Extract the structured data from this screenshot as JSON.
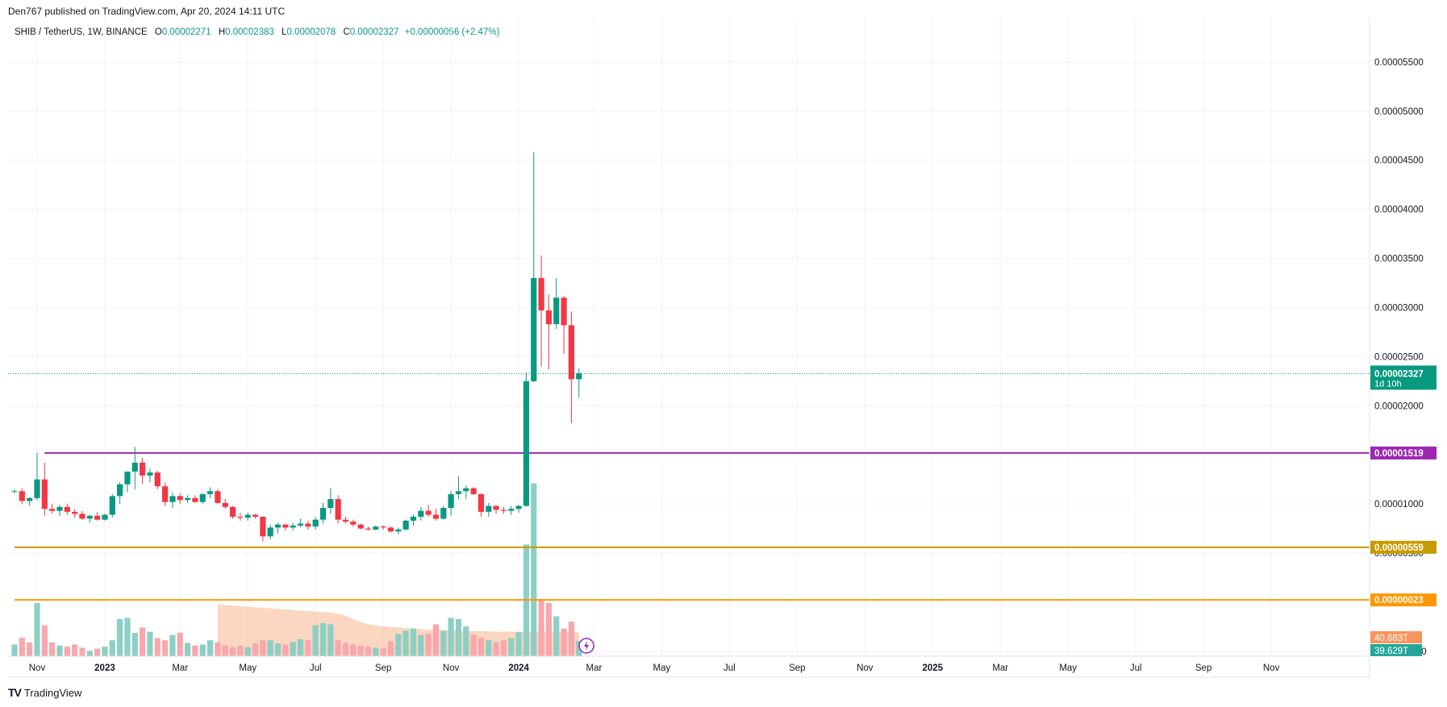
{
  "caption": "Den767 published on TradingView.com, Apr 20, 2024 14:11 UTC",
  "legend": {
    "symbol": "SHIB / TetherUS, 1W, BINANCE",
    "o_label": "O",
    "o_value": "0.00002271",
    "h_label": "H",
    "h_value": "0.00002383",
    "l_label": "L",
    "l_value": "0.00002078",
    "c_label": "C",
    "c_value": "0.00002327",
    "change": "+0.00000056 (+2.47%)"
  },
  "brand": {
    "logo": "TV",
    "name": "TradingView"
  },
  "colors": {
    "up": "#089981",
    "down": "#f23645",
    "up_volume": "#8ccfc4",
    "down_volume": "#f7a7ad",
    "volume_ma": "#f7b58c",
    "level_purple": "#9c27b0",
    "level_gold": "#c79b00",
    "level_orange": "#ff9800",
    "current_price": "#089981"
  },
  "chart_data": {
    "type": "candlestick",
    "symbol": "SHIB / TetherUS",
    "interval": "1W",
    "exchange": "BINANCE",
    "y_ticks": [
      "0.00005500",
      "0.00005000",
      "0.00004500",
      "0.00004000",
      "0.00003500",
      "0.00003000",
      "0.00002500",
      "0.00002000",
      "0.00001000",
      "0.00000500",
      "-0.00000500"
    ],
    "y_tick_values": [
      5.5e-05,
      5e-05,
      4.5e-05,
      4e-05,
      3.5e-05,
      3e-05,
      2.5e-05,
      2e-05,
      1e-05,
      5e-06,
      -5e-06
    ],
    "ylim": [
      -5.5e-06,
      5.95e-05
    ],
    "x_labels": [
      "Nov",
      "2023",
      "Mar",
      "May",
      "Jul",
      "Sep",
      "Nov",
      "2024",
      "Mar",
      "May",
      "Jul",
      "Sep",
      "Nov",
      "2025",
      "Mar",
      "May",
      "Jul",
      "Sep",
      "Nov"
    ],
    "x_label_weeks": [
      3,
      12,
      22,
      31,
      40,
      49,
      58,
      67,
      77,
      86,
      95,
      104,
      113,
      122,
      131,
      140,
      149,
      158,
      167
    ],
    "candles": [
      [
        1.13e-05,
        1.15e-05,
        1.11e-05,
        1.13e-05
      ],
      [
        1.13e-05,
        1.16e-05,
        1e-05,
        1.03e-05
      ],
      [
        1.03e-05,
        1.07e-05,
        9.8e-06,
        1.06e-05
      ],
      [
        1.06e-05,
        1.52e-05,
        1.04e-05,
        1.25e-05
      ],
      [
        1.25e-05,
        1.42e-05,
        8.8e-06,
        9.5e-06
      ],
      [
        9.5e-06,
        1e-05,
        9e-06,
        9.3e-06
      ],
      [
        9.3e-06,
        9.9e-06,
        8.8e-06,
        9.7e-06
      ],
      [
        9.7e-06,
        1e-05,
        8.9e-06,
        9.2e-06
      ],
      [
        9.2e-06,
        9.5e-06,
        8.6e-06,
        9e-06
      ],
      [
        9e-06,
        9.3e-06,
        8.4e-06,
        8.5e-06
      ],
      [
        8.5e-06,
        8.9e-06,
        8.1e-06,
        8.8e-06
      ],
      [
        8.8e-06,
        9.2e-06,
        8.3e-06,
        8.4e-06
      ],
      [
        8.4e-06,
        9e-06,
        8.3e-06,
        8.9e-06
      ],
      [
        8.9e-06,
        1.1e-05,
        8.6e-06,
        1.08e-05
      ],
      [
        1.08e-05,
        1.22e-05,
        1e-05,
        1.2e-05
      ],
      [
        1.2e-05,
        1.3e-05,
        1.12e-05,
        1.33e-05
      ],
      [
        1.33e-05,
        1.58e-05,
        1.15e-05,
        1.42e-05
      ],
      [
        1.42e-05,
        1.47e-05,
        1.2e-05,
        1.29e-05
      ],
      [
        1.29e-05,
        1.36e-05,
        1.22e-05,
        1.32e-05
      ],
      [
        1.32e-05,
        1.34e-05,
        1.15e-05,
        1.18e-05
      ],
      [
        1.18e-05,
        1.22e-05,
        9.8e-06,
        1.02e-05
      ],
      [
        1.02e-05,
        1.12e-05,
        9.6e-06,
        1.08e-05
      ],
      [
        1.08e-05,
        1.11e-05,
        1e-05,
        1.04e-05
      ],
      [
        1.04e-05,
        1.09e-05,
        1.01e-05,
        1.06e-05
      ],
      [
        1.06e-05,
        1.09e-05,
        1.01e-05,
        1.02e-05
      ],
      [
        1.02e-05,
        1.11e-05,
        1e-05,
        1.1e-05
      ],
      [
        1.1e-05,
        1.17e-05,
        1.06e-05,
        1.13e-05
      ],
      [
        1.13e-05,
        1.15e-05,
        1e-05,
        1.01e-05
      ],
      [
        1.01e-05,
        1.05e-05,
        9.5e-06,
        9.7e-06
      ],
      [
        9.7e-06,
        9.8e-06,
        8.5e-06,
        8.7e-06
      ],
      [
        8.7e-06,
        9.1e-06,
        8.3e-06,
        8.6e-06
      ],
      [
        8.6e-06,
        9.1e-06,
        8.3e-06,
        8.9e-06
      ],
      [
        8.9e-06,
        9e-06,
        8.5e-06,
        8.7e-06
      ],
      [
        8.7e-06,
        8.7e-06,
        6.2e-06,
        6.7e-06
      ],
      [
        6.7e-06,
        7.9e-06,
        6.4e-06,
        7.6e-06
      ],
      [
        7.6e-06,
        8.1e-06,
        7e-06,
        7.9e-06
      ],
      [
        7.9e-06,
        8e-06,
        7.3e-06,
        7.6e-06
      ],
      [
        7.6e-06,
        8.1e-06,
        7.3e-06,
        7.8e-06
      ],
      [
        7.8e-06,
        8.5e-06,
        7.6e-06,
        8e-06
      ],
      [
        8e-06,
        8.3e-06,
        7.4e-06,
        7.7e-06
      ],
      [
        7.7e-06,
        8.7e-06,
        7.4e-06,
        8.4e-06
      ],
      [
        8.4e-06,
        1.01e-05,
        8e-06,
        9.6e-06
      ],
      [
        9.6e-06,
        1.16e-05,
        9e-06,
        1.05e-05
      ],
      [
        1.05e-05,
        1.09e-05,
        8e-06,
        8.4e-06
      ],
      [
        8.4e-06,
        8.7e-06,
        8e-06,
        8.2e-06
      ],
      [
        8.2e-06,
        8.4e-06,
        7.7e-06,
        7.9e-06
      ],
      [
        7.9e-06,
        8e-06,
        7.4e-06,
        7.5e-06
      ],
      [
        7.5e-06,
        7.7e-06,
        7.3e-06,
        7.4e-06
      ],
      [
        7.4e-06,
        7.8e-06,
        7.3e-06,
        7.7e-06
      ],
      [
        7.7e-06,
        7.8e-06,
        7.4e-06,
        7.6e-06
      ],
      [
        7.6e-06,
        7.7e-06,
        7.1e-06,
        7.2e-06
      ],
      [
        7.2e-06,
        7.6e-06,
        6.9e-06,
        7.4e-06
      ],
      [
        7.4e-06,
        8.4e-06,
        7.3e-06,
        8.3e-06
      ],
      [
        8.3e-06,
        8.9e-06,
        7.8e-06,
        8.7e-06
      ],
      [
        8.7e-06,
        9.7e-06,
        8.3e-06,
        9.3e-06
      ],
      [
        9.3e-06,
        9.9e-06,
        8.7e-06,
        8.9e-06
      ],
      [
        8.9e-06,
        9.5e-06,
        8.3e-06,
        8.5e-06
      ],
      [
        8.5e-06,
        9.8e-06,
        8.4e-06,
        9.6e-06
      ],
      [
        9.6e-06,
        1.13e-05,
        8.8e-06,
        1.1e-05
      ],
      [
        1.1e-05,
        1.28e-05,
        1.05e-05,
        1.13e-05
      ],
      [
        1.13e-05,
        1.19e-05,
        1.05e-05,
        1.16e-05
      ],
      [
        1.16e-05,
        1.17e-05,
        1.09e-05,
        1.1e-05
      ],
      [
        1.1e-05,
        1.11e-05,
        8.7e-06,
        9.2e-06
      ],
      [
        9.2e-06,
        1.01e-05,
        8.7e-06,
        9.8e-06
      ],
      [
        9.8e-06,
        9.9e-06,
        9e-06,
        9.4e-06
      ],
      [
        9.4e-06,
        9.7e-06,
        9e-06,
        9.3e-06
      ],
      [
        9.3e-06,
        9.8e-06,
        8.9e-06,
        9.5e-06
      ],
      [
        9.5e-06,
        9.9e-06,
        9.1e-06,
        9.8e-06
      ],
      [
        9.8e-06,
        2.34e-05,
        9.7e-06,
        2.25e-05
      ],
      [
        2.25e-05,
        4.58e-05,
        2.24e-05,
        3.3e-05
      ],
      [
        3.3e-05,
        3.53e-05,
        2.4e-05,
        2.97e-05
      ],
      [
        2.97e-05,
        3.13e-05,
        2.37e-05,
        2.83e-05
      ],
      [
        2.83e-05,
        3.3e-05,
        2.78e-05,
        3.1e-05
      ],
      [
        3.1e-05,
        3.12e-05,
        2.53e-05,
        2.82e-05
      ],
      [
        2.82e-05,
        2.96e-05,
        1.82e-05,
        2.27e-05
      ],
      [
        2.27e-05,
        2.38e-05,
        2.08e-05,
        2.33e-05
      ]
    ],
    "volume_scale": "relative (0-1), shown as bar heights under price",
    "volumes": [
      0.22,
      0.35,
      0.26,
      1.0,
      0.58,
      0.26,
      0.2,
      0.18,
      0.22,
      0.16,
      0.1,
      0.14,
      0.18,
      0.3,
      0.7,
      0.72,
      0.44,
      0.54,
      0.46,
      0.34,
      0.3,
      0.4,
      0.44,
      0.25,
      0.2,
      0.22,
      0.3,
      0.26,
      0.2,
      0.17,
      0.2,
      0.17,
      0.24,
      0.3,
      0.3,
      0.24,
      0.22,
      0.27,
      0.32,
      0.3,
      0.58,
      0.62,
      0.6,
      0.3,
      0.25,
      0.22,
      0.2,
      0.18,
      0.16,
      0.15,
      0.28,
      0.42,
      0.48,
      0.52,
      0.4,
      0.42,
      0.6,
      0.48,
      0.72,
      0.7,
      0.56,
      0.4,
      0.34,
      0.3,
      0.26,
      0.3,
      0.34,
      0.45,
      2.1,
      3.25,
      1.05,
      1.0,
      0.75,
      0.52,
      0.65,
      0.29
    ],
    "volume_up_flags": [
      1,
      0,
      0,
      1,
      0,
      0,
      1,
      0,
      0,
      0,
      1,
      0,
      1,
      1,
      1,
      1,
      1,
      0,
      1,
      0,
      0,
      1,
      0,
      1,
      0,
      1,
      1,
      0,
      0,
      0,
      0,
      1,
      0,
      0,
      1,
      1,
      0,
      1,
      1,
      0,
      1,
      1,
      1,
      0,
      0,
      0,
      0,
      0,
      1,
      0,
      0,
      1,
      1,
      1,
      1,
      0,
      0,
      1,
      1,
      1,
      1,
      0,
      0,
      1,
      0,
      0,
      1,
      1,
      1,
      1,
      0,
      0,
      1,
      0,
      0,
      1
    ],
    "volume_ma_start_week": 27,
    "volume_ma": [
      0.98,
      0.96,
      0.95,
      0.94,
      0.93,
      0.92,
      0.91,
      0.9,
      0.89,
      0.88,
      0.87,
      0.86,
      0.85,
      0.84,
      0.83,
      0.82,
      0.8,
      0.76,
      0.7,
      0.64,
      0.6,
      0.58,
      0.56,
      0.55,
      0.54,
      0.53,
      0.52,
      0.51,
      0.5,
      0.5,
      0.49,
      0.49,
      0.48,
      0.48,
      0.47,
      0.47,
      0.47,
      0.46,
      0.46,
      0.46,
      0.46,
      0.46,
      0.46,
      0.46,
      0.46,
      0.46,
      0.46,
      0.46,
      0.46
    ],
    "levels": [
      {
        "price": 1.519e-05,
        "label": "0.00001519",
        "color": "#9c27b0",
        "start_week": 4
      },
      {
        "price": 5.59e-06,
        "label": "0.00000559",
        "color": "#c79b00",
        "start_week": 0
      },
      {
        "price": 2.3e-07,
        "label": "0.00000023",
        "color": "#ff9800",
        "start_week": 0
      }
    ],
    "current_price": {
      "value": 2.327e-05,
      "label": "0.00002327",
      "countdown": "1d 10h"
    },
    "volume_labels": [
      {
        "text": "40.683T",
        "color": "#f7955e"
      },
      {
        "text": "39.629T",
        "color": "#26a69a"
      }
    ]
  }
}
